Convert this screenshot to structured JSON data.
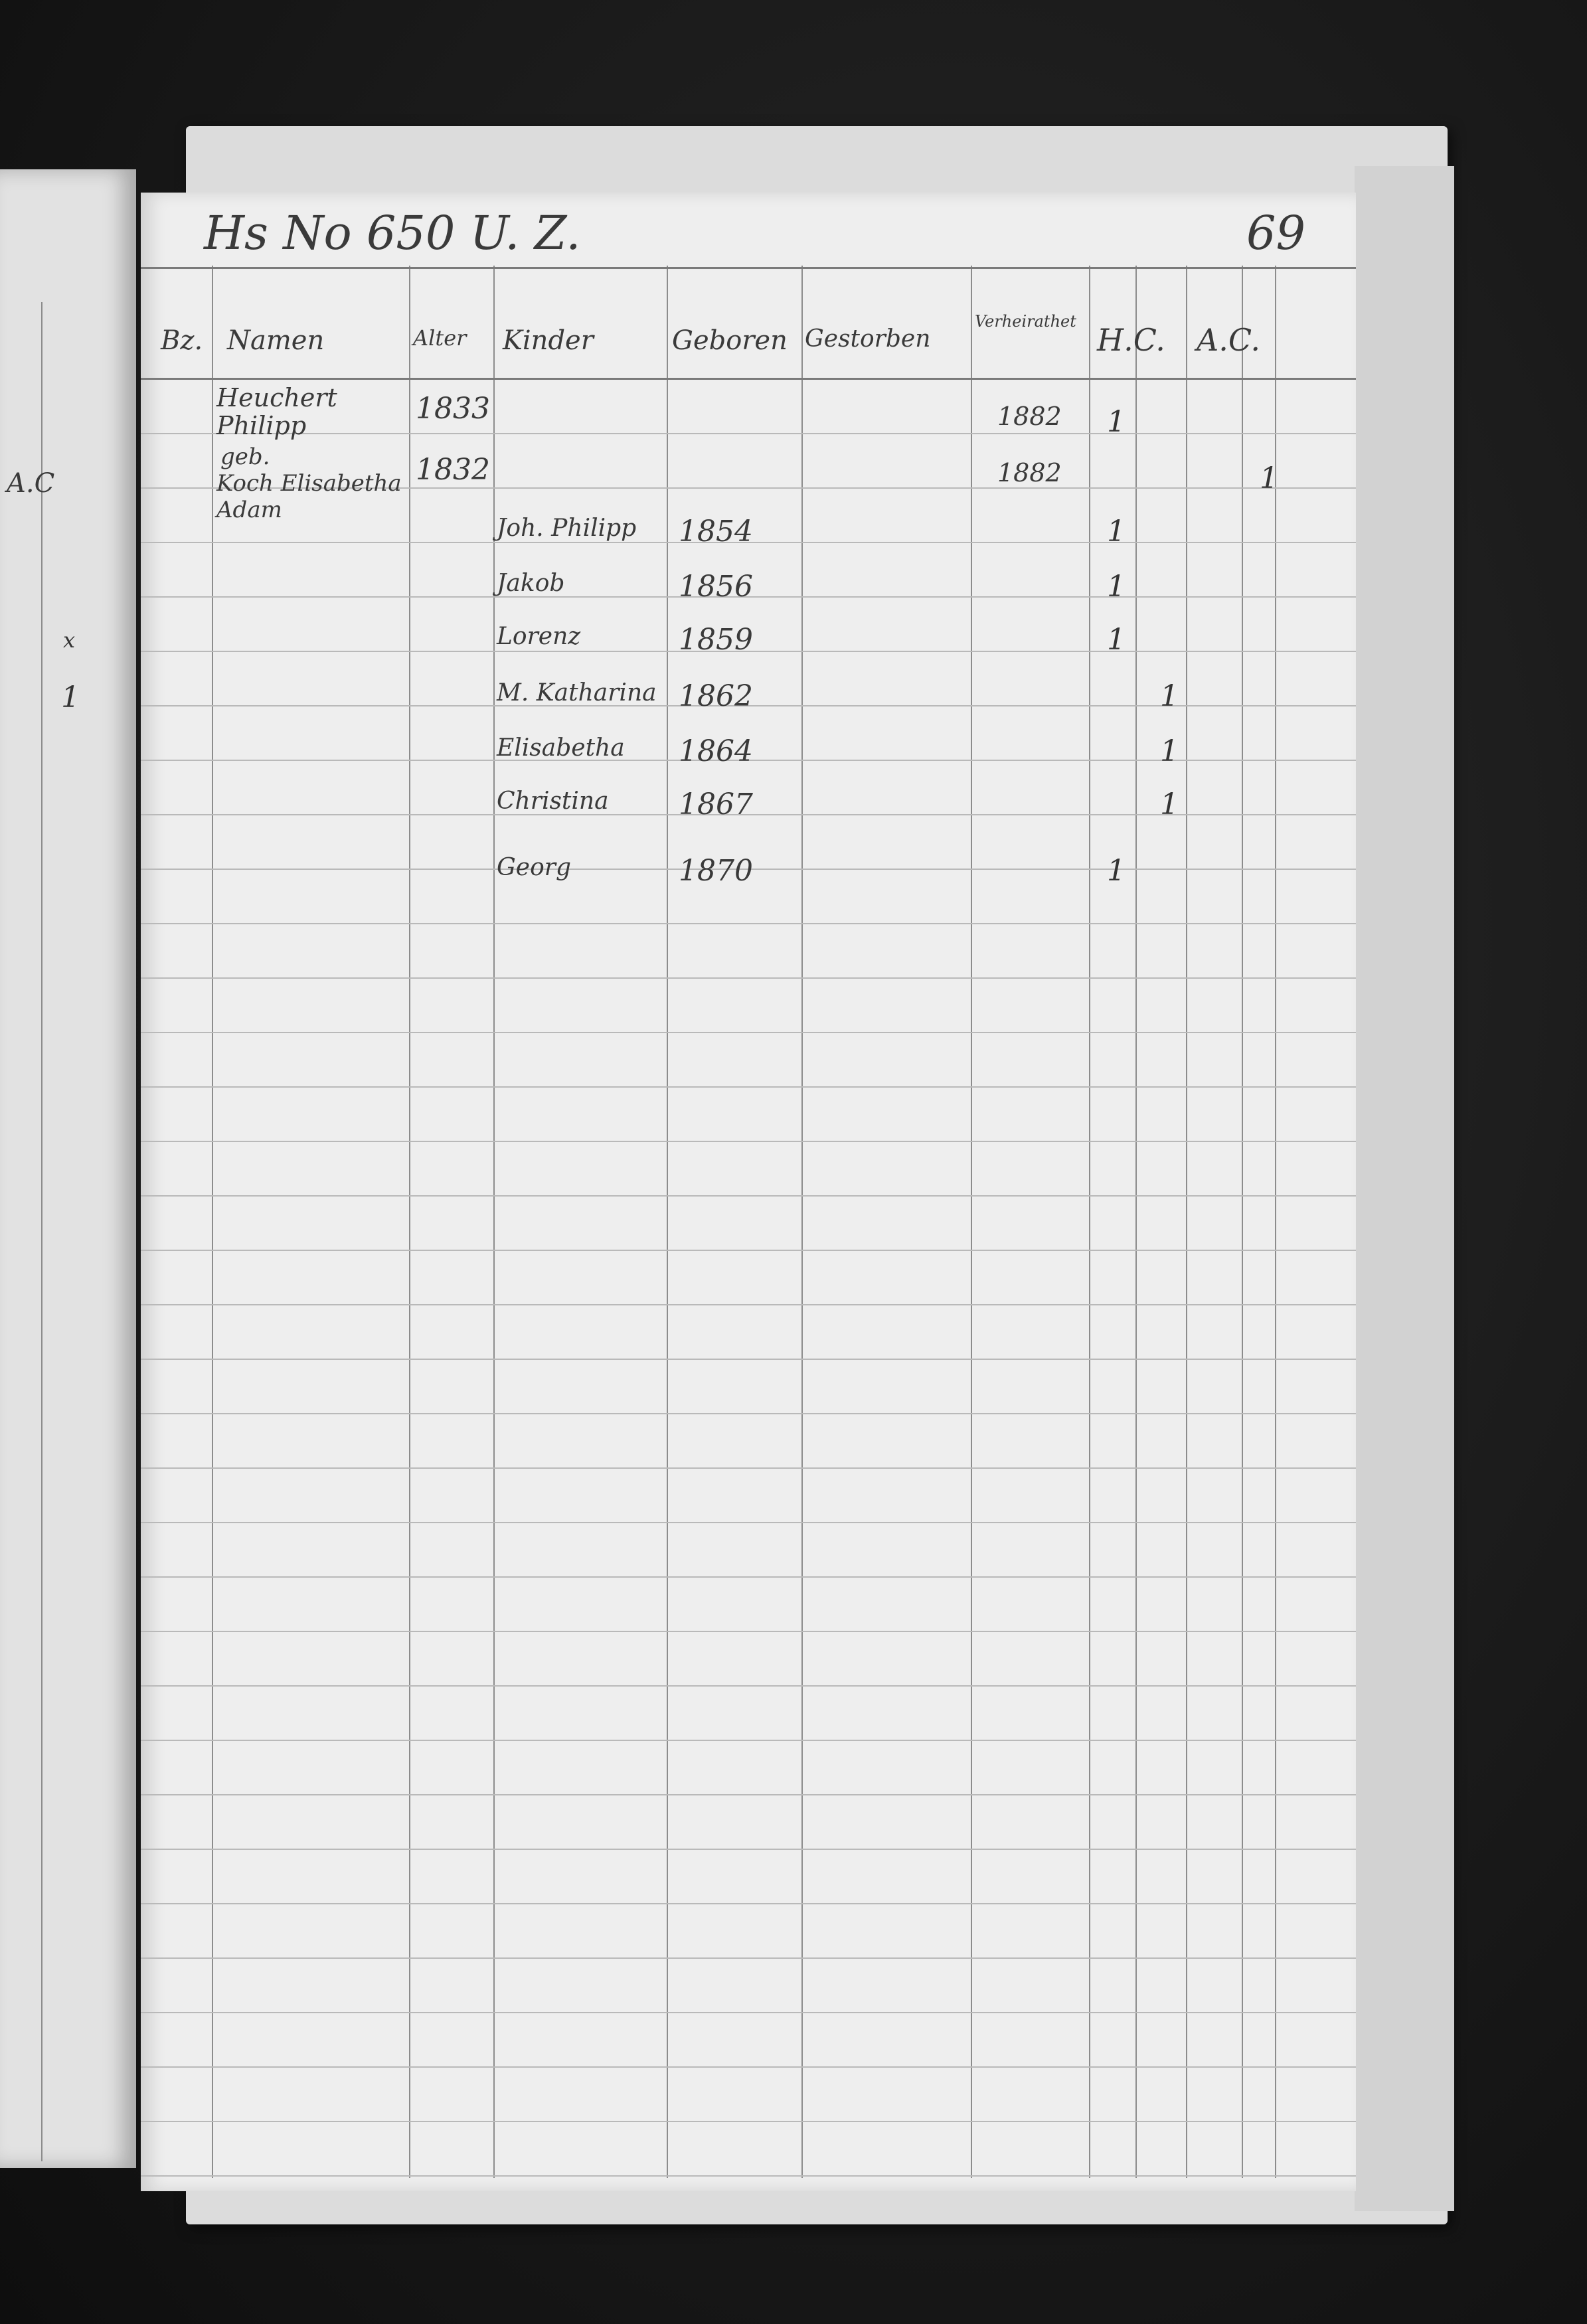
{
  "left_page": {
    "column_header": "A.C",
    "marks": [
      "x",
      "1"
    ]
  },
  "right_page": {
    "title": "Hs No 650 U. Z.",
    "page_number": "69",
    "columns": [
      "Bz.",
      "Namen",
      "Alter",
      "Kinder",
      "Geboren",
      "Gestorben",
      "Verheirathet",
      "H.C.",
      "A.C."
    ],
    "parents": [
      {
        "name": "Heuchert Philipp",
        "year": "1833",
        "married": "1882",
        "hc_mark": "1",
        "ac_mark": ""
      },
      {
        "name_line1": "geb.",
        "name": "Koch Elisabetha Adam",
        "year": "1832",
        "married": "1882",
        "hc_mark": "",
        "ac_mark": "1"
      }
    ],
    "children": [
      {
        "name": "Joh. Philipp",
        "born": "1854",
        "mark": "1",
        "col": "hc_m"
      },
      {
        "name": "Jakob",
        "born": "1856",
        "mark": "1",
        "col": "hc_m"
      },
      {
        "name": "Lorenz",
        "born": "1859",
        "mark": "1",
        "col": "hc_m"
      },
      {
        "name": "M. Katharina",
        "born": "1862",
        "mark": "1",
        "col": "hc_f"
      },
      {
        "name": "Elisabetha",
        "born": "1864",
        "mark": "1",
        "col": "hc_f"
      },
      {
        "name": "Christina",
        "born": "1867",
        "mark": "1",
        "col": "hc_f"
      },
      {
        "name": "Georg",
        "born": "1870",
        "mark": "1",
        "col": "hc_m"
      }
    ]
  }
}
